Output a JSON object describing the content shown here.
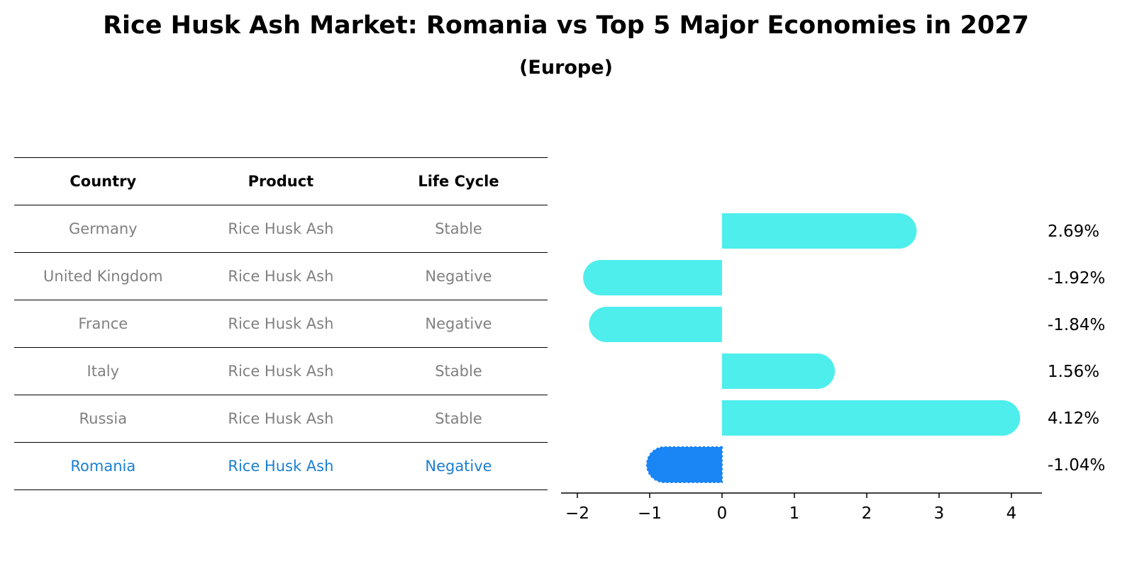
{
  "header": {
    "title": "Rice Husk Ash Market: Romania vs Top 5 Major Economies in 2027",
    "subtitle": "(Europe)"
  },
  "table": {
    "columns": [
      "Country",
      "Product",
      "Life Cycle"
    ],
    "rows": [
      [
        "Germany",
        "Rice Husk Ash",
        "Stable"
      ],
      [
        "United Kingdom",
        "Rice Husk Ash",
        "Negative"
      ],
      [
        "France",
        "Rice Husk Ash",
        "Negative"
      ],
      [
        "Italy",
        "Rice Husk Ash",
        "Stable"
      ],
      [
        "Russia",
        "Rice Husk Ash",
        "Stable"
      ],
      [
        "Romania",
        "Rice Husk Ash",
        "Negative"
      ]
    ],
    "highlight_row": 5
  },
  "chart_data": {
    "type": "bar",
    "orientation": "horizontal",
    "categories": [
      "Germany",
      "United Kingdom",
      "France",
      "Italy",
      "Russia",
      "Romania"
    ],
    "values": [
      2.69,
      -1.92,
      -1.84,
      1.56,
      4.12,
      -1.04
    ],
    "value_labels": [
      "2.69%",
      "-1.92%",
      "-1.84%",
      "1.56%",
      "4.12%",
      "-1.04%"
    ],
    "xlim": [
      -2.2,
      4.4
    ],
    "xticks": [
      -2,
      -1,
      0,
      1,
      2,
      3,
      4
    ],
    "xtick_labels": [
      "−2",
      "−1",
      "0",
      "1",
      "2",
      "3",
      "4"
    ],
    "grid": false,
    "colors": {
      "default": "#4eeeec",
      "highlight": "#1a85f5"
    },
    "highlight_index": 5
  }
}
